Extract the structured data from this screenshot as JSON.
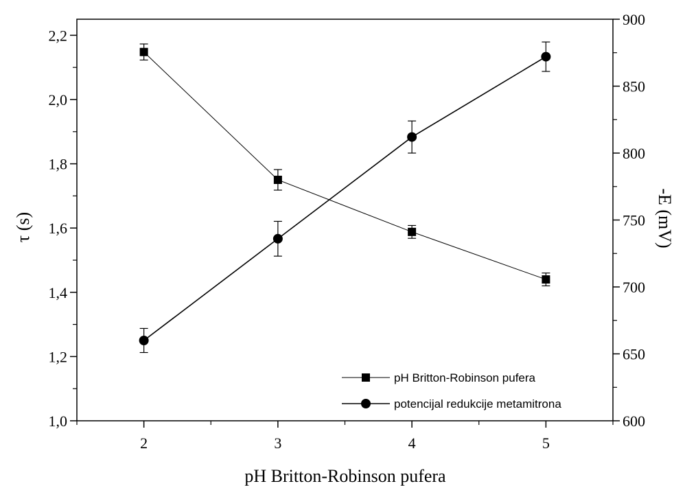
{
  "chart_data": {
    "type": "line",
    "xlabel": "pH Britton-Robinson pufera",
    "ylabel_left": "τ (s)",
    "ylabel_right": "-E (mV)",
    "x": [
      2,
      3,
      4,
      5
    ],
    "x_ticks": [
      "2",
      "3",
      "4",
      "5"
    ],
    "xlim": [
      1.5,
      5.5
    ],
    "ylim_left": [
      1.0,
      2.25
    ],
    "ylim_right": [
      600,
      900
    ],
    "y_ticks_left": [
      "1,0",
      "1,2",
      "1,4",
      "1,6",
      "1,8",
      "2,0",
      "2,2"
    ],
    "y_ticks_right": [
      "600",
      "650",
      "700",
      "750",
      "800",
      "850",
      "900"
    ],
    "legend_position": "bottom-right",
    "series": [
      {
        "name": "pH Britton-Robinson pufera",
        "axis": "left",
        "marker": "square",
        "values": [
          2.148,
          1.75,
          1.588,
          1.44
        ],
        "errors": [
          0.025,
          0.032,
          0.02,
          0.02
        ]
      },
      {
        "name": "potencijal redukcije metamitrona",
        "axis": "right",
        "marker": "circle",
        "values": [
          660,
          736,
          812,
          872
        ],
        "errors": [
          9,
          13,
          12,
          11
        ]
      }
    ]
  }
}
